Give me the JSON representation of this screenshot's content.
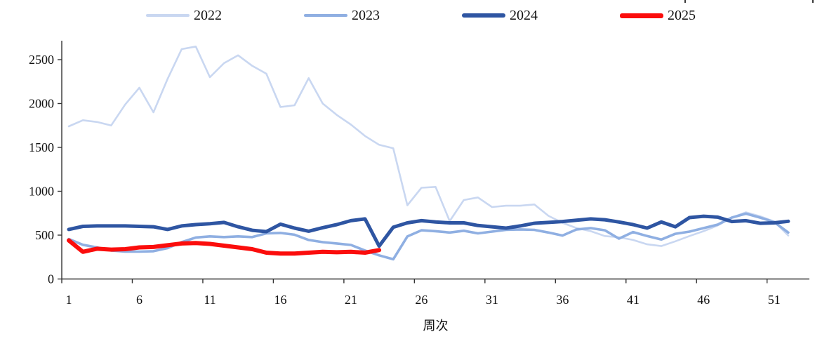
{
  "page": {
    "background": "#ffffff"
  },
  "chart_data": {
    "type": "line",
    "title": "",
    "xlabel": "周次",
    "ylabel": "",
    "x_slots": 53,
    "x_tick_labels": [
      1,
      6,
      11,
      16,
      21,
      26,
      31,
      36,
      41,
      46,
      51
    ],
    "y_ticks": [
      0,
      500,
      1000,
      1500,
      2000,
      2500
    ],
    "ylim": [
      0,
      2720
    ],
    "grid": false,
    "legend_position": "top",
    "axis_color": "#333333",
    "series": [
      {
        "name": "2022",
        "color": "#c9d7f1",
        "values": [
          1740,
          1810,
          1790,
          1750,
          1990,
          2180,
          1900,
          2280,
          2620,
          2650,
          2300,
          2460,
          2550,
          2430,
          2340,
          1960,
          1980,
          2290,
          2000,
          1870,
          1760,
          1630,
          1530,
          1490,
          840,
          1040,
          1050,
          660,
          900,
          930,
          820,
          835,
          835,
          850,
          720,
          640,
          580,
          545,
          490,
          475,
          445,
          395,
          375,
          430,
          490,
          545,
          610,
          700,
          760,
          715,
          655,
          495
        ]
      },
      {
        "name": "2023",
        "color": "#8fafe2",
        "values": [
          455,
          390,
          360,
          325,
          312,
          312,
          317,
          352,
          420,
          473,
          486,
          478,
          486,
          478,
          520,
          525,
          505,
          445,
          420,
          405,
          388,
          325,
          270,
          225,
          485,
          555,
          545,
          530,
          550,
          520,
          540,
          560,
          565,
          560,
          530,
          495,
          565,
          580,
          555,
          460,
          535,
          490,
          450,
          515,
          540,
          580,
          620,
          700,
          745,
          700,
          650,
          530
        ]
      },
      {
        "name": "2024",
        "color": "#2e55a2",
        "values": [
          565,
          600,
          605,
          605,
          605,
          600,
          595,
          565,
          605,
          620,
          630,
          645,
          595,
          555,
          540,
          625,
          580,
          545,
          585,
          620,
          665,
          685,
          375,
          590,
          640,
          665,
          650,
          640,
          640,
          610,
          595,
          580,
          605,
          635,
          645,
          655,
          670,
          685,
          675,
          650,
          620,
          580,
          650,
          595,
          700,
          715,
          705,
          655,
          665,
          635,
          640,
          658
        ]
      },
      {
        "name": "2025",
        "color": "#fb0d0c",
        "values": [
          440,
          310,
          345,
          335,
          340,
          360,
          365,
          385,
          405,
          410,
          400,
          380,
          360,
          340,
          300,
          290,
          290,
          300,
          310,
          305,
          310,
          300,
          330
        ]
      }
    ]
  }
}
